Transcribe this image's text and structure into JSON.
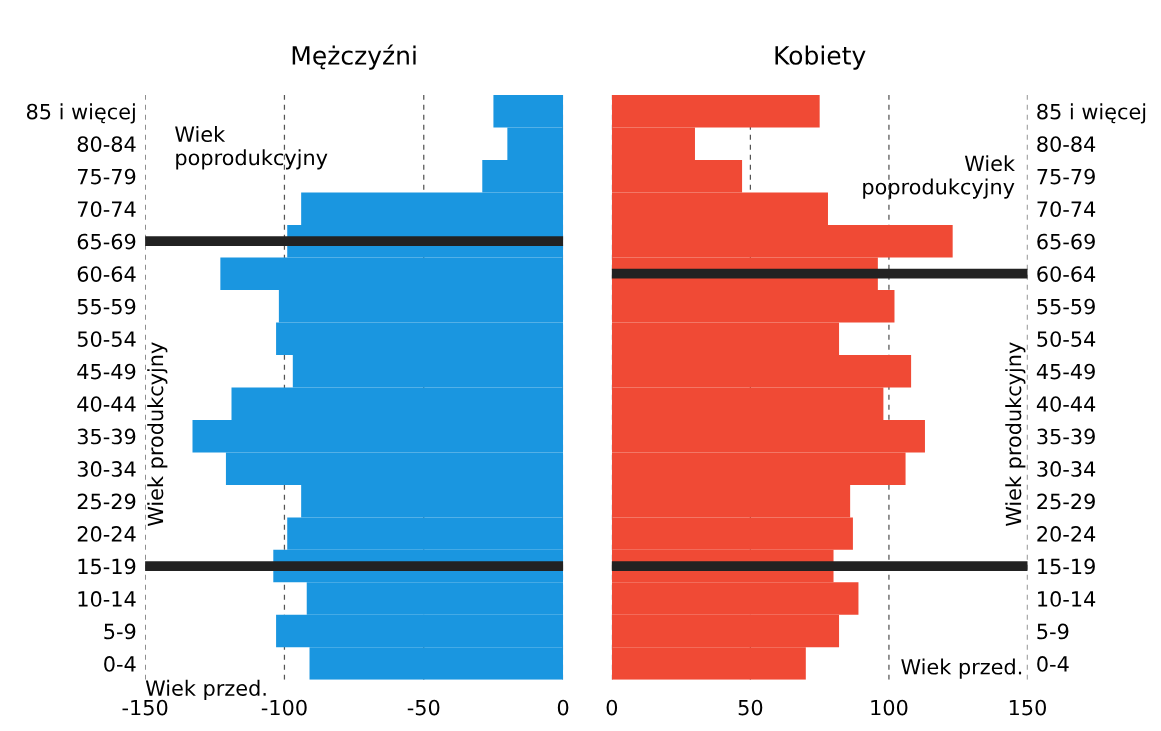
{
  "chart_data": [
    {
      "type": "bar",
      "orientation": "horizontal",
      "title": "Mężczyźni",
      "categories": [
        "85 i więcej",
        "80-84",
        "75-79",
        "70-74",
        "65-69",
        "60-64",
        "55-59",
        "50-54",
        "45-49",
        "40-44",
        "35-39",
        "30-34",
        "25-29",
        "20-24",
        "15-19",
        "10-14",
        "5-9",
        "0-4"
      ],
      "series": [
        {
          "color": "#1a96e0",
          "values": [
            -25,
            -20,
            -29,
            -94,
            -99,
            -123,
            -102,
            -103,
            -97,
            -119,
            -133,
            -121,
            -94,
            -99,
            -104,
            -92,
            -103,
            -91
          ]
        }
      ],
      "xlim": [
        -150,
        0
      ],
      "xticks": [
        -150,
        -100,
        -50,
        0
      ],
      "grid": "x",
      "ref_lines": [
        {
          "axis": "y",
          "value": "65-69",
          "color": "#222222"
        },
        {
          "axis": "y",
          "value": "15-19",
          "color": "#222222"
        }
      ],
      "annotations": [
        "Wiek\npoprodukcyjny",
        "Wiek produkcyjny",
        "Wiek przed."
      ]
    },
    {
      "type": "bar",
      "orientation": "horizontal",
      "title": "Kobiety",
      "categories": [
        "85 i więcej",
        "80-84",
        "75-79",
        "70-74",
        "65-69",
        "60-64",
        "55-59",
        "50-54",
        "45-49",
        "40-44",
        "35-39",
        "30-34",
        "25-29",
        "20-24",
        "15-19",
        "10-14",
        "5-9",
        "0-4"
      ],
      "series": [
        {
          "color": "#f04a35",
          "values": [
            75,
            30,
            47,
            78,
            123,
            96,
            102,
            82,
            108,
            98,
            113,
            106,
            86,
            87,
            80,
            89,
            82,
            70
          ]
        }
      ],
      "xlim": [
        0,
        150
      ],
      "xticks": [
        0,
        50,
        100,
        150
      ],
      "grid": "x",
      "ref_lines": [
        {
          "axis": "y",
          "value": "60-64",
          "color": "#222222"
        },
        {
          "axis": "y",
          "value": "15-19",
          "color": "#222222"
        }
      ],
      "annotations": [
        "Wiek\npoprodukcyjny",
        "Wiek produkcyjny",
        "Wiek przed."
      ]
    }
  ]
}
